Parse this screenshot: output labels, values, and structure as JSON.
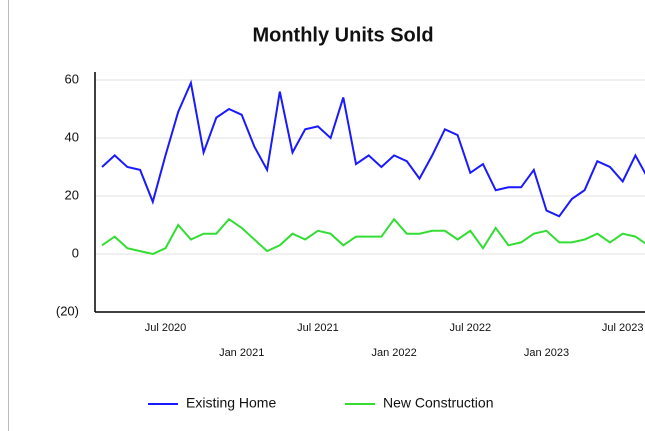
{
  "chart_data": {
    "type": "line",
    "title": "Monthly Units Sold",
    "categories": [
      null,
      null,
      null,
      null,
      null,
      "Jul 2020",
      null,
      null,
      null,
      null,
      null,
      "Jan 2021",
      null,
      null,
      null,
      null,
      null,
      "Jul 2021",
      null,
      null,
      null,
      null,
      null,
      "Jan 2022",
      null,
      null,
      null,
      null,
      null,
      "Jul 2022",
      null,
      null,
      null,
      null,
      null,
      "Jan 2023",
      null,
      null,
      null,
      null,
      null,
      "Jul 2023",
      null,
      null
    ],
    "series": [
      {
        "name": "Existing Home",
        "color": "#1a1aff",
        "values": [
          30,
          34,
          30,
          29,
          18,
          34,
          49,
          59,
          35,
          47,
          50,
          48,
          37,
          29,
          56,
          35,
          43,
          44,
          40,
          54,
          31,
          34,
          30,
          34,
          32,
          26,
          34,
          43,
          41,
          28,
          31,
          22,
          23,
          23,
          29,
          15,
          13,
          19,
          22,
          32,
          30,
          25,
          34,
          26
        ]
      },
      {
        "name": "New Construction",
        "color": "#33dd33",
        "values": [
          3,
          6,
          2,
          1,
          0,
          2,
          10,
          5,
          7,
          7,
          12,
          9,
          5,
          1,
          3,
          7,
          5,
          8,
          7,
          3,
          6,
          6,
          6,
          12,
          7,
          7,
          8,
          8,
          5,
          8,
          2,
          9,
          3,
          4,
          7,
          8,
          4,
          4,
          5,
          7,
          4,
          7,
          6,
          3
        ]
      }
    ],
    "ylim": [
      -20,
      60
    ],
    "yticks": [
      {
        "value": -20,
        "label": "(20)"
      },
      0,
      20,
      40,
      60
    ],
    "grid": true,
    "legend": "bottom"
  }
}
